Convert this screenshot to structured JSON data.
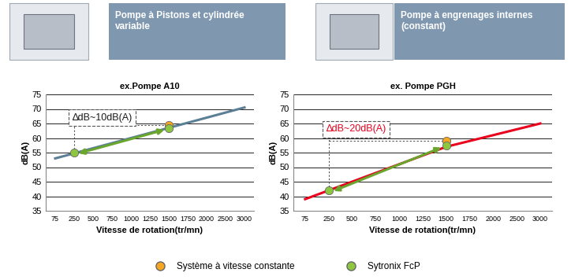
{
  "chart_data": [
    {
      "type": "line",
      "title": "Pompe à Pistons et cylindrée\nvariable",
      "subtitle": "ex.Pompe A10",
      "x_label": "Vitesse de rotation(tr/mn)",
      "y_label": "dB(A)",
      "annotation": "∆dB~10dB(A)",
      "categories": [
        "75",
        "250",
        "500",
        "750",
        "1000",
        "1250",
        "1500",
        "1750",
        "2000",
        "2500",
        "3000"
      ],
      "ylim": [
        35,
        75
      ],
      "yticks": [
        35,
        40,
        45,
        50,
        55,
        60,
        65,
        70,
        75
      ],
      "grid": true,
      "legend": "lower center",
      "series": [
        {
          "type": "line",
          "color": "#5b7f95",
          "line_style": "solid",
          "values": [
            53,
            54.75,
            56.5,
            58.25,
            60,
            61.75,
            63.5,
            65.25,
            67,
            68.75,
            70.5
          ]
        },
        {
          "name": "Système à vitesse constante",
          "type": "scatter",
          "color": "#f5a623",
          "marker": "o",
          "values": [
            null,
            null,
            null,
            null,
            null,
            null,
            64.5,
            null,
            null,
            null,
            null
          ]
        },
        {
          "name": "Sytronix FcP",
          "type": "scatter",
          "color": "#8dc63f",
          "marker": "o",
          "values": [
            null,
            55,
            null,
            null,
            null,
            null,
            63.5,
            null,
            null,
            null,
            null
          ]
        }
      ]
    },
    {
      "type": "line",
      "title": "Pompe à engrenages internes\n(constant)",
      "subtitle": "ex. Pompe PGH",
      "x_label": "Vitesse de rotation(tr/mn)",
      "y_label": "dB(A)",
      "annotation": "∆dB~20dB(A)",
      "categories": [
        "75",
        "250",
        "500",
        "750",
        "1000",
        "1250",
        "1500",
        "1750",
        "2000",
        "2500",
        "3000"
      ],
      "ylim": [
        35,
        75
      ],
      "yticks": [
        35,
        40,
        45,
        50,
        55,
        60,
        65,
        70,
        75
      ],
      "grid": true,
      "series": [
        {
          "type": "line",
          "color": "#e8001c",
          "line_style": "solid",
          "values": [
            39,
            42,
            45,
            48,
            51,
            54,
            57,
            59,
            61,
            63,
            65
          ]
        },
        {
          "name": "Système à vitesse constante",
          "type": "scatter",
          "color": "#f5a623",
          "marker": "o",
          "values": [
            null,
            null,
            null,
            null,
            null,
            null,
            59,
            null,
            null,
            null,
            null
          ]
        },
        {
          "name": "Sytronix FcP",
          "type": "scatter",
          "color": "#8dc63f",
          "marker": "o",
          "values": [
            null,
            42,
            null,
            null,
            null,
            null,
            57.5,
            null,
            null,
            null,
            null
          ]
        }
      ]
    }
  ]
}
